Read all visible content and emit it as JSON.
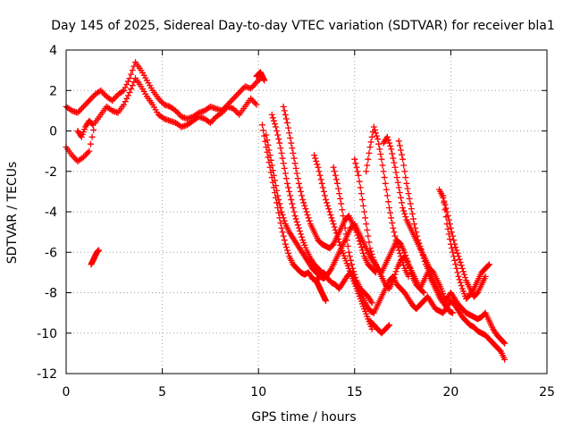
{
  "chart_data": {
    "type": "scatter",
    "title": "Day 145 of 2025, Sidereal Day-to-day VTEC variation (SDTVAR) for receiver bla1",
    "xlabel": "GPS time / hours",
    "ylabel": "SDTVAR / TECUs",
    "xlim": [
      0,
      25
    ],
    "ylim": [
      -12,
      4
    ],
    "xticks": [
      "0",
      "5",
      "10",
      "15",
      "20",
      "25"
    ],
    "yticks": [
      "4",
      "2",
      "0",
      "-2",
      "-4",
      "-6",
      "-8",
      "-10",
      "-12"
    ],
    "marker": "+",
    "color": "#ff0000",
    "grid": true,
    "series": [
      {
        "name": "t1",
        "x": [
          0.0,
          0.3,
          0.6,
          0.9,
          1.2,
          1.5,
          1.8,
          2.1,
          2.4,
          2.7,
          3.0,
          3.3,
          3.6,
          3.9,
          4.2,
          4.5,
          4.8,
          5.1,
          5.4,
          5.7,
          6.0,
          6.3,
          6.6,
          6.9,
          7.2,
          7.5,
          7.8,
          8.1,
          8.4,
          8.7,
          9.0,
          9.3,
          9.6,
          9.9,
          10.2
        ],
        "y": [
          1.2,
          1.0,
          0.9,
          1.2,
          1.5,
          1.8,
          2.0,
          1.7,
          1.5,
          1.8,
          2.0,
          2.6,
          3.4,
          3.0,
          2.5,
          2.0,
          1.6,
          1.3,
          1.2,
          1.0,
          0.7,
          0.6,
          0.7,
          0.9,
          1.0,
          1.2,
          1.1,
          1.0,
          1.3,
          1.6,
          1.9,
          2.2,
          2.1,
          2.4,
          2.7
        ]
      },
      {
        "name": "t2",
        "x": [
          0.0,
          0.3,
          0.6,
          0.9,
          1.2,
          1.5,
          1.8,
          2.1,
          2.4,
          2.7,
          3.0,
          3.3,
          3.6,
          3.9,
          4.2,
          4.5,
          4.8,
          5.1,
          5.4,
          5.7,
          6.0,
          6.3,
          6.6,
          6.9,
          7.2,
          7.5,
          7.8,
          8.1,
          8.4,
          8.7,
          9.0,
          9.3,
          9.6,
          9.9
        ],
        "y": [
          -0.8,
          -1.2,
          -1.5,
          -1.3,
          -1.0,
          0.4,
          0.8,
          1.2,
          1.0,
          0.9,
          1.3,
          1.9,
          2.6,
          2.2,
          1.7,
          1.3,
          0.8,
          0.6,
          0.5,
          0.4,
          0.2,
          0.3,
          0.5,
          0.7,
          0.6,
          0.4,
          0.7,
          0.9,
          1.2,
          1.1,
          0.8,
          1.2,
          1.6,
          1.3
        ]
      },
      {
        "name": "t3",
        "x": [
          0.6,
          0.8,
          1.0,
          1.2,
          1.4
        ],
        "y": [
          0.0,
          -0.3,
          0.2,
          0.5,
          0.3
        ]
      },
      {
        "name": "t4",
        "x": [
          1.3,
          1.4,
          1.5,
          1.6,
          1.7
        ],
        "y": [
          -6.6,
          -6.4,
          -6.2,
          -6.0,
          -5.9
        ]
      },
      {
        "name": "t5",
        "x": [
          10.2,
          10.4,
          10.6,
          10.8,
          11.0,
          11.2,
          11.4,
          11.6,
          11.8,
          12.0,
          12.2,
          12.4,
          12.6,
          12.8,
          13.0,
          13.2,
          13.4,
          13.6,
          13.8,
          14.0,
          14.2,
          14.4,
          14.6,
          14.8,
          15.0,
          15.2,
          15.4,
          15.6,
          15.8,
          16.0,
          16.2,
          16.4,
          16.6,
          16.8,
          17.0,
          17.2,
          17.4,
          17.6,
          17.8,
          18.0,
          18.2,
          18.4,
          18.6,
          18.8,
          19.0,
          19.2,
          19.4,
          19.6,
          19.8,
          20.0,
          20.2,
          20.4,
          20.6,
          20.8,
          21.0,
          21.2,
          21.4,
          21.6,
          21.8,
          22.0,
          22.2,
          22.4,
          22.6,
          22.8
        ],
        "y": [
          0.3,
          -0.8,
          -1.8,
          -2.8,
          -3.8,
          -4.8,
          -5.6,
          -6.2,
          -6.6,
          -6.8,
          -7.0,
          -7.1,
          -7.0,
          -7.3,
          -7.4,
          -7.2,
          -7.0,
          -7.3,
          -7.5,
          -7.6,
          -7.8,
          -7.5,
          -7.2,
          -7.0,
          -7.4,
          -7.8,
          -8.2,
          -8.6,
          -8.9,
          -9.0,
          -8.6,
          -8.2,
          -7.8,
          -7.4,
          -7.2,
          -7.6,
          -7.8,
          -8.0,
          -8.3,
          -8.6,
          -8.8,
          -8.6,
          -8.4,
          -8.2,
          -8.5,
          -8.8,
          -8.9,
          -9.0,
          -8.7,
          -8.4,
          -8.6,
          -8.9,
          -9.2,
          -9.4,
          -9.6,
          -9.7,
          -9.9,
          -10.0,
          -10.1,
          -10.3,
          -10.5,
          -10.7,
          -10.9,
          -11.3
        ]
      },
      {
        "name": "t6",
        "x": [
          10.4,
          10.6,
          10.8,
          11.0,
          11.2,
          11.4,
          11.6,
          11.8,
          12.0,
          12.2,
          12.4,
          12.6,
          12.8,
          13.0,
          13.2,
          13.4,
          13.6,
          13.8,
          14.0,
          14.2,
          14.4,
          14.6,
          14.8,
          15.0,
          15.2,
          15.4,
          15.6,
          15.8,
          16.0,
          16.2,
          16.4,
          16.6,
          16.8,
          17.0,
          17.2,
          17.4,
          17.6,
          17.8,
          18.0,
          18.2,
          18.4,
          18.6,
          18.8,
          19.0,
          19.2,
          19.4,
          19.6,
          19.8,
          20.0,
          20.2,
          20.4,
          20.6,
          20.8,
          21.0,
          21.2,
          21.4,
          21.6,
          21.8,
          22.0,
          22.2,
          22.4,
          22.6,
          22.8
        ],
        "y": [
          -0.2,
          -1.2,
          -2.2,
          -3.2,
          -4.0,
          -4.6,
          -5.0,
          -5.3,
          -5.6,
          -5.9,
          -6.2,
          -6.5,
          -6.8,
          -7.0,
          -7.2,
          -7.3,
          -7.1,
          -6.8,
          -6.4,
          -6.0,
          -5.6,
          -5.2,
          -4.8,
          -4.6,
          -5.0,
          -5.4,
          -5.8,
          -6.2,
          -6.5,
          -6.8,
          -7.0,
          -6.6,
          -6.2,
          -5.8,
          -5.4,
          -5.6,
          -6.0,
          -6.6,
          -7.2,
          -7.6,
          -7.8,
          -7.4,
          -7.0,
          -7.4,
          -7.8,
          -8.2,
          -8.5,
          -8.3,
          -8.0,
          -8.3,
          -8.6,
          -8.8,
          -9.0,
          -9.1,
          -9.2,
          -9.3,
          -9.2,
          -9.0,
          -9.4,
          -9.8,
          -10.1,
          -10.3,
          -10.5
        ]
      },
      {
        "name": "t7",
        "x": [
          9.9,
          10.0,
          10.1,
          10.2,
          10.3
        ],
        "y": [
          2.7,
          2.8,
          2.9,
          2.7,
          2.5
        ]
      },
      {
        "name": "t8",
        "x": [
          10.7,
          10.9,
          11.1,
          11.3,
          11.5,
          11.7,
          11.9,
          12.1,
          12.3,
          12.5,
          12.7,
          12.9,
          13.1,
          13.3,
          13.5
        ],
        "y": [
          0.8,
          0.2,
          -0.6,
          -1.6,
          -2.6,
          -3.4,
          -4.2,
          -4.8,
          -5.4,
          -5.9,
          -6.3,
          -6.6,
          -6.8,
          -7.0,
          -7.1
        ]
      },
      {
        "name": "t9",
        "x": [
          11.3,
          11.5,
          11.7,
          11.9,
          12.1,
          12.3,
          12.5,
          12.7,
          12.9,
          13.1,
          13.3,
          13.5,
          13.7,
          13.9,
          14.1,
          14.3,
          14.5,
          14.7,
          14.9,
          15.1,
          15.3,
          15.5,
          15.7,
          15.9,
          16.1
        ],
        "y": [
          1.2,
          0.4,
          -0.6,
          -1.6,
          -2.6,
          -3.4,
          -4.0,
          -4.6,
          -5.0,
          -5.4,
          -5.6,
          -5.7,
          -5.8,
          -5.6,
          -5.2,
          -4.8,
          -4.4,
          -4.2,
          -4.6,
          -5.0,
          -5.6,
          -6.2,
          -6.6,
          -6.8,
          -7.0
        ]
      },
      {
        "name": "t10",
        "x": [
          12.9,
          13.1,
          13.3,
          13.5,
          13.7,
          13.9,
          14.1,
          14.3,
          14.5,
          14.7,
          14.9,
          15.1,
          15.3,
          15.5,
          15.7,
          15.9
        ],
        "y": [
          -1.2,
          -1.8,
          -2.6,
          -3.4,
          -4.0,
          -4.6,
          -5.2,
          -5.8,
          -6.3,
          -6.8,
          -7.3,
          -7.8,
          -8.3,
          -8.8,
          -9.3,
          -9.8
        ]
      },
      {
        "name": "t11",
        "x": [
          13.9,
          14.1,
          14.3,
          14.5,
          14.7,
          14.9,
          15.1,
          15.3,
          15.5,
          15.7,
          15.9
        ],
        "y": [
          -1.8,
          -2.6,
          -3.6,
          -4.8,
          -6.0,
          -6.8,
          -7.4,
          -7.8,
          -8.0,
          -8.2,
          -8.5
        ]
      },
      {
        "name": "t12",
        "x": [
          15.0,
          15.2,
          15.4,
          15.6,
          15.8,
          16.0,
          16.2,
          16.4,
          16.6,
          16.8,
          17.0,
          17.2,
          17.4,
          17.6,
          17.8,
          18.0,
          18.2,
          18.4,
          18.6
        ],
        "y": [
          -1.4,
          -2.2,
          -3.4,
          -4.6,
          -5.8,
          -6.4,
          -6.8,
          -7.2,
          -7.6,
          -7.8,
          -7.4,
          -6.8,
          -6.4,
          -6.2,
          -6.6,
          -7.0,
          -7.4,
          -7.8,
          -8.0
        ]
      },
      {
        "name": "t13",
        "x": [
          15.6,
          15.8,
          16.0,
          16.2,
          16.4,
          16.6,
          16.8,
          17.0,
          17.2,
          17.4,
          17.6,
          17.8
        ],
        "y": [
          -2.0,
          -0.8,
          0.2,
          -0.4,
          -1.4,
          -2.6,
          -3.8,
          -4.8,
          -5.6,
          -6.2,
          -6.8,
          -7.2
        ]
      },
      {
        "name": "t14",
        "x": [
          16.5,
          16.7,
          16.9,
          17.1,
          17.3,
          17.5,
          17.7,
          17.9,
          18.1,
          18.3,
          18.5,
          18.7,
          18.9,
          19.1,
          19.3,
          19.5,
          19.7
        ],
        "y": [
          -0.6,
          -0.3,
          -0.9,
          -1.8,
          -2.8,
          -3.8,
          -4.4,
          -4.8,
          -5.2,
          -5.6,
          -6.0,
          -6.4,
          -6.8,
          -7.0,
          -7.4,
          -7.8,
          -8.3
        ]
      },
      {
        "name": "t15",
        "x": [
          17.3,
          17.5,
          17.7,
          17.9,
          18.1,
          18.3,
          18.5,
          18.7,
          18.9,
          19.1,
          19.3,
          19.5,
          19.7,
          19.9,
          20.1
        ],
        "y": [
          -0.5,
          -1.4,
          -2.6,
          -3.6,
          -4.6,
          -5.4,
          -6.0,
          -6.6,
          -7.0,
          -7.4,
          -7.8,
          -8.2,
          -8.6,
          -8.9,
          -9.0
        ]
      },
      {
        "name": "t16",
        "x": [
          19.4,
          19.6,
          19.8,
          20.0,
          20.2,
          20.4,
          20.6,
          20.8,
          21.0,
          21.2,
          21.4,
          21.6,
          21.8
        ],
        "y": [
          -2.9,
          -3.3,
          -4.0,
          -4.8,
          -5.6,
          -6.2,
          -6.8,
          -7.4,
          -7.8,
          -8.2,
          -8.0,
          -7.6,
          -7.2
        ]
      },
      {
        "name": "t17",
        "x": [
          19.6,
          19.8,
          20.0,
          20.2,
          20.4,
          20.6,
          20.8,
          21.0,
          21.2,
          21.4,
          21.6,
          21.8,
          22.0
        ],
        "y": [
          -3.2,
          -4.6,
          -5.6,
          -6.4,
          -7.2,
          -7.8,
          -8.3,
          -8.1,
          -7.8,
          -7.4,
          -7.0,
          -6.8,
          -6.6
        ]
      },
      {
        "name": "t18",
        "x": [
          13.0,
          13.1,
          13.2,
          13.3,
          13.4,
          13.5
        ],
        "y": [
          -7.4,
          -7.6,
          -7.8,
          -8.0,
          -8.2,
          -8.4
        ]
      },
      {
        "name": "t19",
        "x": [
          15.8,
          16.0,
          16.2,
          16.4,
          16.6,
          16.8
        ],
        "y": [
          -9.4,
          -9.6,
          -9.8,
          -10.0,
          -9.8,
          -9.6
        ]
      }
    ]
  }
}
